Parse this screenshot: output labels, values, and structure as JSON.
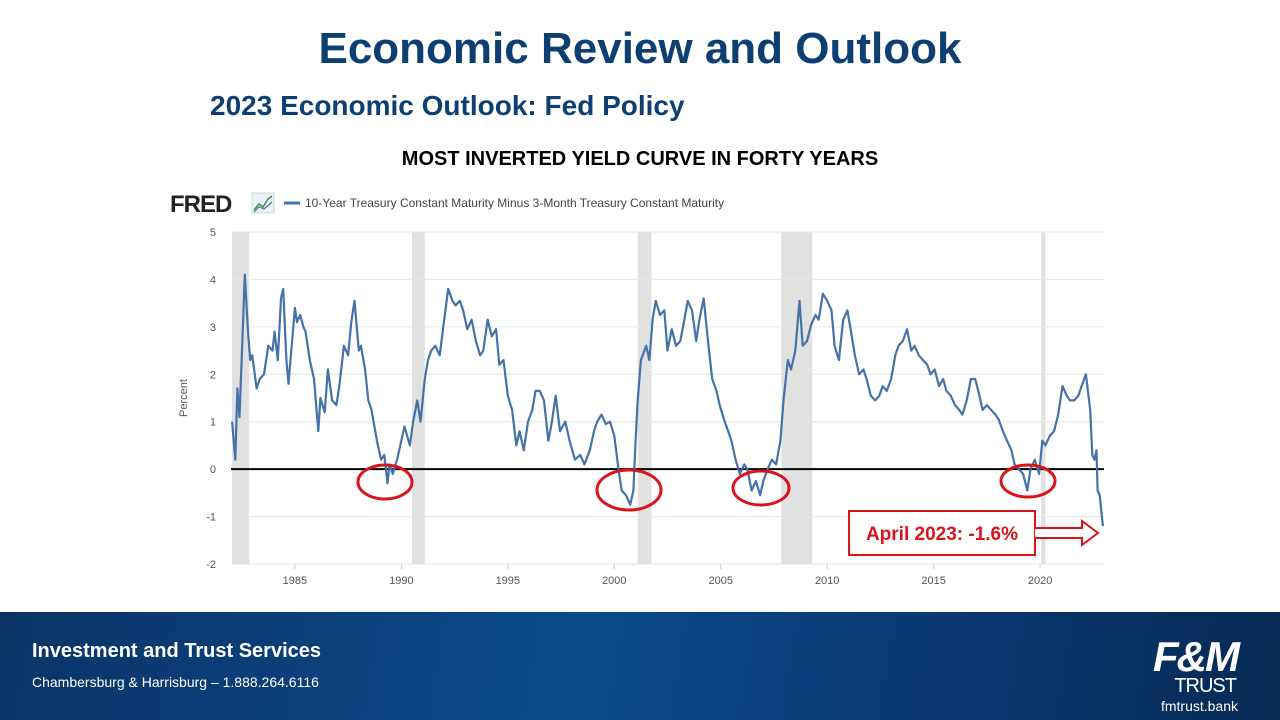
{
  "header": {
    "title": "Economic Review and Outlook",
    "subtitle": "2023 Economic Outlook: Fed Policy"
  },
  "chart_data": {
    "type": "line",
    "title": "MOST INVERTED YIELD CURVE IN FORTY YEARS",
    "source": "FRED",
    "y_label": "Percent",
    "xlim": [
      1982,
      2023
    ],
    "xticks": [
      1985,
      1990,
      1995,
      2000,
      2005,
      2010,
      2015,
      2020
    ],
    "ylim": [
      -2,
      5
    ],
    "yticks": [
      -2,
      -1,
      0,
      1,
      2,
      3,
      4,
      5
    ],
    "grid": true,
    "reference_line": 0,
    "recessions": [
      [
        1982.05,
        1982.85
      ],
      [
        1990.5,
        1991.1
      ],
      [
        2001.1,
        2001.75
      ],
      [
        2007.85,
        2009.3
      ],
      [
        2020.05,
        2020.25
      ]
    ],
    "annotation": "April 2023: -1.6%",
    "x": [
      1982.05,
      1982.2,
      1982.3,
      1982.4,
      1982.55,
      1982.65,
      1982.8,
      1982.9,
      1983.0,
      1983.2,
      1983.35,
      1983.55,
      1983.75,
      1983.95,
      1984.05,
      1984.2,
      1984.35,
      1984.45,
      1984.6,
      1984.7,
      1984.85,
      1985.0,
      1985.1,
      1985.25,
      1985.4,
      1985.5,
      1985.7,
      1985.9,
      1986.1,
      1986.2,
      1986.4,
      1986.55,
      1986.75,
      1986.95,
      1987.1,
      1987.3,
      1987.5,
      1987.65,
      1987.8,
      1988.0,
      1988.1,
      1988.3,
      1988.45,
      1988.6,
      1988.85,
      1989.05,
      1989.2,
      1989.35,
      1989.45,
      1989.6,
      1989.8,
      1990.0,
      1990.15,
      1990.4,
      1990.55,
      1990.75,
      1990.9,
      1991.1,
      1991.25,
      1991.4,
      1991.6,
      1991.8,
      1992.0,
      1992.2,
      1992.4,
      1992.55,
      1992.75,
      1992.9,
      1993.1,
      1993.3,
      1993.5,
      1993.7,
      1993.85,
      1994.05,
      1994.25,
      1994.45,
      1994.6,
      1994.8,
      1995.0,
      1995.2,
      1995.4,
      1995.55,
      1995.75,
      1995.95,
      1996.15,
      1996.3,
      1996.5,
      1996.7,
      1996.9,
      1997.05,
      1997.25,
      1997.45,
      1997.7,
      1997.9,
      1998.15,
      1998.4,
      1998.6,
      1998.85,
      1999.05,
      1999.2,
      1999.4,
      1999.6,
      1999.8,
      2000.0,
      2000.2,
      2000.35,
      2000.55,
      2000.75,
      2000.9,
      2001.0,
      2001.1,
      2001.25,
      2001.5,
      2001.65,
      2001.8,
      2001.95,
      2002.15,
      2002.35,
      2002.5,
      2002.7,
      2002.9,
      2003.1,
      2003.25,
      2003.45,
      2003.65,
      2003.85,
      2004.0,
      2004.2,
      2004.4,
      2004.6,
      2004.8,
      2004.95,
      2005.15,
      2005.35,
      2005.5,
      2005.7,
      2005.9,
      2006.1,
      2006.25,
      2006.45,
      2006.65,
      2006.85,
      2007.0,
      2007.2,
      2007.4,
      2007.6,
      2007.8,
      2007.95,
      2008.15,
      2008.3,
      2008.5,
      2008.7,
      2008.85,
      2009.05,
      2009.25,
      2009.45,
      2009.6,
      2009.8,
      2010.0,
      2010.2,
      2010.35,
      2010.55,
      2010.75,
      2010.95,
      2011.1,
      2011.3,
      2011.5,
      2011.7,
      2011.85,
      2012.05,
      2012.25,
      2012.45,
      2012.6,
      2012.8,
      2013.0,
      2013.2,
      2013.35,
      2013.55,
      2013.75,
      2013.95,
      2014.1,
      2014.3,
      2014.5,
      2014.7,
      2014.85,
      2015.05,
      2015.25,
      2015.45,
      2015.6,
      2015.8,
      2016.0,
      2016.2,
      2016.35,
      2016.55,
      2016.75,
      2016.95,
      2017.15,
      2017.3,
      2017.5,
      2017.7,
      2017.9,
      2018.05,
      2018.25,
      2018.45,
      2018.65,
      2018.8,
      2019.0,
      2019.2,
      2019.4,
      2019.55,
      2019.75,
      2019.95,
      2020.1,
      2020.25,
      2020.45,
      2020.65,
      2020.85,
      2021.05,
      2021.25,
      2021.4,
      2021.6,
      2021.8,
      2021.95,
      2022.15,
      2022.35,
      2022.45,
      2022.55,
      2022.65,
      2022.7,
      2022.8,
      2022.95
    ],
    "series": [
      {
        "name": "10-Year Treasury Constant Maturity Minus 3-Month Treasury Constant Maturity",
        "color": "#4572a7",
        "values": [
          1.0,
          0.2,
          1.7,
          1.1,
          2.9,
          4.1,
          2.9,
          2.3,
          2.4,
          1.7,
          1.9,
          2.0,
          2.6,
          2.5,
          2.9,
          2.3,
          3.6,
          3.8,
          2.3,
          1.8,
          2.6,
          3.4,
          3.1,
          3.25,
          3.0,
          2.9,
          2.3,
          1.9,
          0.8,
          1.5,
          1.2,
          2.1,
          1.45,
          1.35,
          1.8,
          2.6,
          2.4,
          3.1,
          3.55,
          2.5,
          2.6,
          2.1,
          1.45,
          1.25,
          0.6,
          0.2,
          0.3,
          -0.3,
          0.1,
          -0.1,
          0.2,
          0.6,
          0.9,
          0.5,
          1.0,
          1.45,
          1.0,
          1.9,
          2.3,
          2.5,
          2.6,
          2.4,
          3.1,
          3.8,
          3.55,
          3.45,
          3.55,
          3.35,
          2.95,
          3.15,
          2.7,
          2.4,
          2.5,
          3.15,
          2.8,
          2.95,
          2.2,
          2.3,
          1.55,
          1.25,
          0.5,
          0.8,
          0.4,
          1.0,
          1.25,
          1.65,
          1.65,
          1.45,
          0.6,
          0.95,
          1.55,
          0.8,
          1.0,
          0.6,
          0.2,
          0.3,
          0.1,
          0.4,
          0.8,
          1.0,
          1.15,
          0.95,
          1.0,
          0.7,
          0.0,
          -0.45,
          -0.55,
          -0.75,
          -0.45,
          0.6,
          1.45,
          2.3,
          2.6,
          2.3,
          3.15,
          3.55,
          3.25,
          3.35,
          2.5,
          2.95,
          2.6,
          2.7,
          3.05,
          3.55,
          3.35,
          2.7,
          3.15,
          3.6,
          2.7,
          1.9,
          1.65,
          1.35,
          1.05,
          0.8,
          0.6,
          0.2,
          -0.1,
          0.1,
          0.0,
          -0.45,
          -0.25,
          -0.55,
          -0.25,
          0.0,
          0.2,
          0.1,
          0.6,
          1.45,
          2.3,
          2.1,
          2.5,
          3.55,
          2.6,
          2.7,
          3.05,
          3.25,
          3.15,
          3.7,
          3.55,
          3.35,
          2.6,
          2.3,
          3.15,
          3.35,
          2.95,
          2.4,
          2.0,
          2.1,
          1.9,
          1.55,
          1.45,
          1.55,
          1.75,
          1.65,
          1.9,
          2.4,
          2.6,
          2.7,
          2.95,
          2.5,
          2.6,
          2.4,
          2.3,
          2.2,
          2.0,
          2.1,
          1.75,
          1.9,
          1.65,
          1.55,
          1.35,
          1.25,
          1.15,
          1.45,
          1.9,
          1.9,
          1.55,
          1.25,
          1.35,
          1.25,
          1.15,
          1.05,
          0.8,
          0.6,
          0.4,
          0.1,
          0.0,
          -0.1,
          -0.45,
          0.0,
          0.2,
          -0.1,
          0.6,
          0.5,
          0.7,
          0.8,
          1.15,
          1.75,
          1.55,
          1.45,
          1.45,
          1.55,
          1.75,
          2.0,
          1.25,
          0.3,
          0.2,
          0.4,
          -0.45,
          -0.55,
          -1.2
        ]
      }
    ]
  },
  "footer": {
    "title": "Investment and Trust Services",
    "contact": "Chambersburg & Harrisburg – 1.888.264.6116",
    "logo_top": "F&M",
    "logo_bottom": "TRUST",
    "url": "fmtrust.bank"
  }
}
